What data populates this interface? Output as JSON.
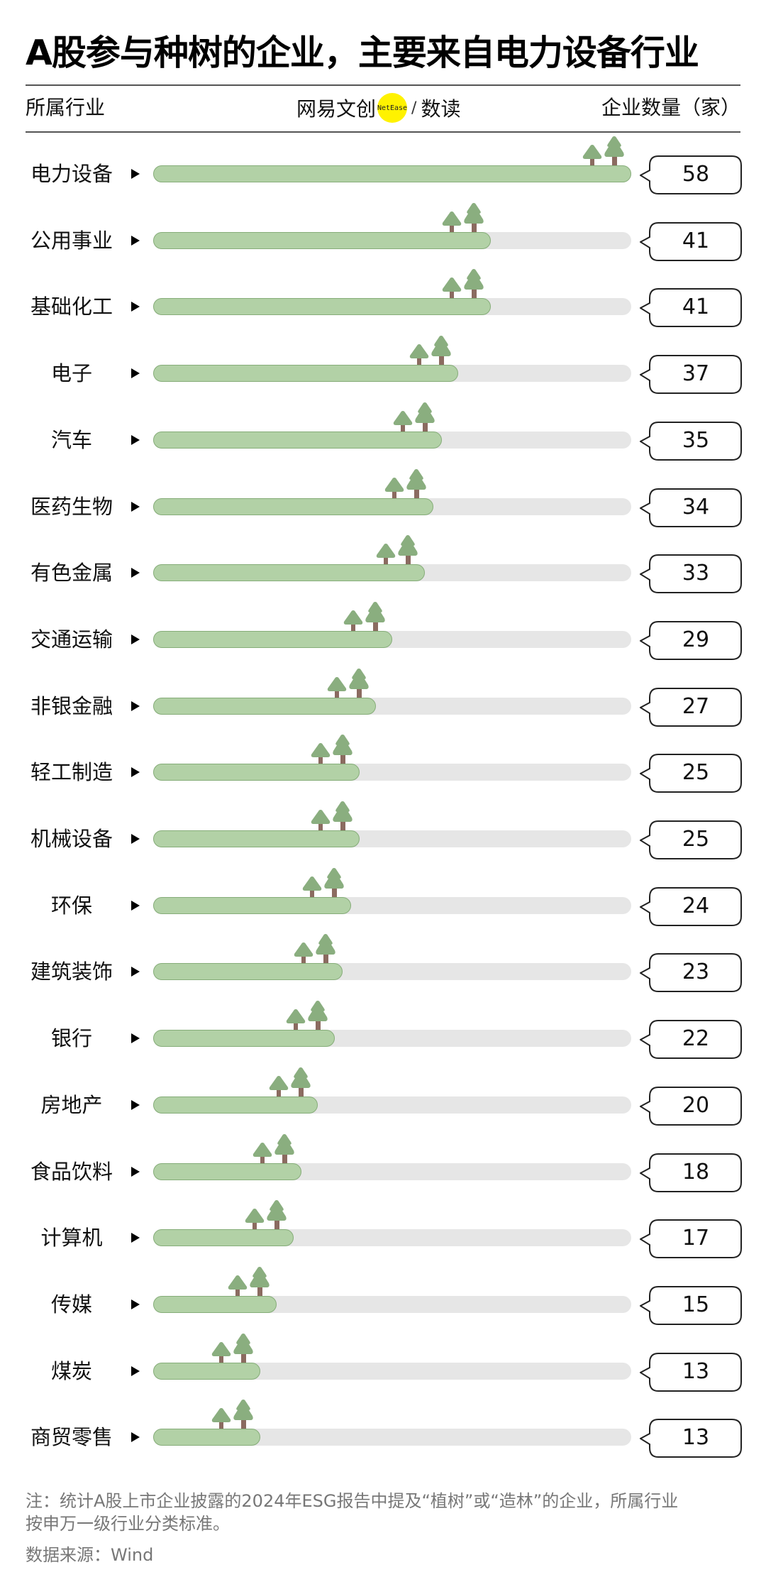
{
  "title": "A股参与种树的企业，主要来自电力设备行业",
  "header": {
    "left": "所属行业",
    "right": "企业数量（家）",
    "logo_text": "网易文创",
    "logo_badge": "NetEase",
    "logo_slash": "/",
    "logo_suffix": "数读"
  },
  "colors": {
    "bar_fill": "#b2d1a6",
    "bar_border": "#86ad79",
    "track": "#e6e6e6",
    "tree": "#8aae7f",
    "trunk": "#8b6b60",
    "logo_dot": "#fff200"
  },
  "chart_data": {
    "type": "bar",
    "orientation": "horizontal",
    "title": "A股参与种树的企业，主要来自电力设备行业",
    "xlabel": "企业数量（家）",
    "ylabel": "所属行业",
    "xlim": [
      0,
      58
    ],
    "grid": false,
    "legend": null,
    "categories": [
      "电力设备",
      "公用事业",
      "基础化工",
      "电子",
      "汽车",
      "医药生物",
      "有色金属",
      "交通运输",
      "非银金融",
      "轻工制造",
      "机械设备",
      "环保",
      "建筑装饰",
      "银行",
      "房地产",
      "食品饮料",
      "计算机",
      "传媒",
      "煤炭",
      "商贸零售"
    ],
    "values": [
      58,
      41,
      41,
      37,
      35,
      34,
      33,
      29,
      27,
      25,
      25,
      24,
      23,
      22,
      20,
      18,
      17,
      15,
      13,
      13
    ]
  },
  "rows": [
    {
      "label": "电力设备",
      "value": "58"
    },
    {
      "label": "公用事业",
      "value": "41"
    },
    {
      "label": "基础化工",
      "value": "41"
    },
    {
      "label": "电子",
      "value": "37"
    },
    {
      "label": "汽车",
      "value": "35"
    },
    {
      "label": "医药生物",
      "value": "34"
    },
    {
      "label": "有色金属",
      "value": "33"
    },
    {
      "label": "交通运输",
      "value": "29"
    },
    {
      "label": "非银金融",
      "value": "27"
    },
    {
      "label": "轻工制造",
      "value": "25"
    },
    {
      "label": "机械设备",
      "value": "25"
    },
    {
      "label": "环保",
      "value": "24"
    },
    {
      "label": "建筑装饰",
      "value": "23"
    },
    {
      "label": "银行",
      "value": "22"
    },
    {
      "label": "房地产",
      "value": "20"
    },
    {
      "label": "食品饮料",
      "value": "18"
    },
    {
      "label": "计算机",
      "value": "17"
    },
    {
      "label": "传媒",
      "value": "15"
    },
    {
      "label": "煤炭",
      "value": "13"
    },
    {
      "label": "商贸零售",
      "value": "13"
    }
  ],
  "footer": {
    "note_line1": "注：统计A股上市企业披露的2024年ESG报告中提及“植树”或“造林”的企业，所属行业",
    "note_line2": "按申万一级行业分类标准。",
    "source": "数据来源：Wind"
  }
}
